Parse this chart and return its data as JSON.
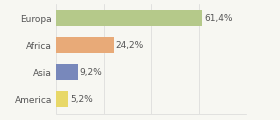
{
  "categories": [
    "Europa",
    "Africa",
    "Asia",
    "America"
  ],
  "values": [
    61.4,
    24.2,
    9.2,
    5.2
  ],
  "labels": [
    "61,4%",
    "24,2%",
    "9,2%",
    "5,2%"
  ],
  "bar_colors": [
    "#b5c98a",
    "#e8aa78",
    "#7888bb",
    "#e8d868"
  ],
  "background_color": "#f7f7f2",
  "xlim": [
    0,
    80
  ],
  "grid_color": "#d8d8d8",
  "grid_xticks": [
    0,
    20,
    40,
    60,
    80
  ],
  "label_fontsize": 6.5,
  "category_fontsize": 6.5,
  "bar_height": 0.6,
  "text_color": "#555555"
}
